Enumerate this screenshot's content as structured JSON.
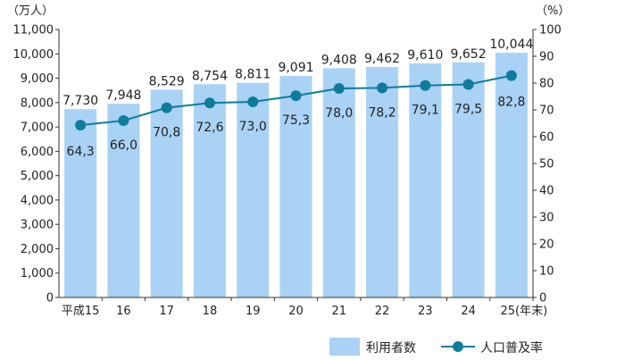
{
  "chart_data": {
    "type": "bar",
    "categories": [
      "平成15",
      "16",
      "17",
      "18",
      "19",
      "20",
      "21",
      "22",
      "23",
      "24",
      "25(年末)"
    ],
    "series": [
      {
        "name": "利用者数",
        "type": "bar",
        "axis": "left",
        "values": [
          7730,
          7948,
          8529,
          8754,
          8811,
          9091,
          9408,
          9462,
          9610,
          9652,
          10044
        ],
        "labels": [
          "7,730",
          "7,948",
          "8,529",
          "8,754",
          "8,811",
          "9,091",
          "9,408",
          "9,462",
          "9,610",
          "9,652",
          "10,044"
        ],
        "color": "#a9d2f5"
      },
      {
        "name": "人口普及率",
        "type": "line",
        "axis": "right",
        "values": [
          64.3,
          66.0,
          70.8,
          72.6,
          73.0,
          75.3,
          78.0,
          78.2,
          79.1,
          79.5,
          82.8
        ],
        "labels": [
          "64,3",
          "66,0",
          "70,8",
          "72,6",
          "73,0",
          "75,3",
          "78,0",
          "78,2",
          "79,1",
          "79,5",
          "82,8"
        ],
        "color": "#0e7c9a"
      }
    ],
    "y_left": {
      "unit": "（万人）",
      "ylim": [
        0,
        11000
      ],
      "ticks": [
        0,
        1000,
        2000,
        3000,
        4000,
        5000,
        6000,
        7000,
        8000,
        9000,
        10000,
        11000
      ],
      "tick_labels": [
        "0",
        "1,000",
        "2,000",
        "3,000",
        "4,000",
        "5,000",
        "6,000",
        "7,000",
        "8,000",
        "9,000",
        "10,000",
        "11,000"
      ]
    },
    "y_right": {
      "unit": "（%）",
      "ylim": [
        0,
        100
      ],
      "ticks": [
        0,
        10,
        20,
        30,
        40,
        50,
        60,
        70,
        80,
        90,
        100
      ],
      "tick_labels": [
        "0",
        "10",
        "20",
        "30",
        "40",
        "50",
        "60",
        "70",
        "80",
        "90",
        "100"
      ]
    },
    "grid": false,
    "legend_position": "bottom-right"
  }
}
